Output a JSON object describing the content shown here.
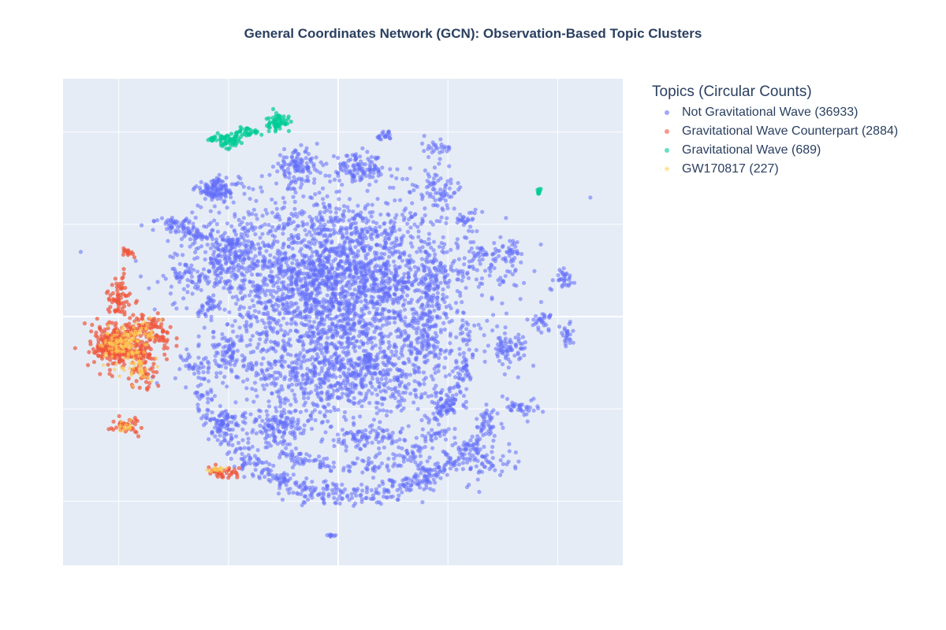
{
  "chart_data": {
    "type": "scatter",
    "title": "General Coordinates Network (GCN): Observation-Based Topic Clusters",
    "xlabel": "",
    "ylabel": "",
    "xlim": [
      -100,
      100
    ],
    "ylim": [
      -100,
      100
    ],
    "x_ticks": [
      -80,
      -40,
      0,
      40,
      80
    ],
    "y_ticks": [
      -80,
      -40,
      0,
      40,
      80
    ],
    "tick_labels_shown": false,
    "grid": true,
    "legend_title": "Topics (Circular Counts)",
    "legend_position": "right",
    "series": [
      {
        "name": "Not Gravitational Wave (36933)",
        "color": "#636efa",
        "marker": "circle",
        "clusters": [
          {
            "x": -5,
            "y": 20,
            "sx": 22,
            "sy": 17,
            "n": 1400
          },
          {
            "x": 5,
            "y": 8,
            "sx": 24,
            "sy": 20,
            "n": 1100
          },
          {
            "x": -40,
            "y": 28,
            "sx": 8,
            "sy": 6,
            "n": 180
          },
          {
            "x": -44,
            "y": 55,
            "sx": 4,
            "sy": 2.5,
            "n": 120
          },
          {
            "x": -15,
            "y": 65,
            "sx": 4,
            "sy": 3.5,
            "n": 110
          },
          {
            "x": 7,
            "y": 64,
            "sx": 5,
            "sy": 3,
            "n": 110
          },
          {
            "x": 36,
            "y": 73,
            "sx": 3,
            "sy": 1.8,
            "n": 25
          },
          {
            "x": 17,
            "y": 78,
            "sx": 1.5,
            "sy": 1.2,
            "n": 20
          },
          {
            "x": 36,
            "y": 55,
            "sx": 5,
            "sy": 4,
            "n": 70
          },
          {
            "x": 34,
            "y": 14,
            "sx": 4,
            "sy": 7,
            "n": 100
          },
          {
            "x": 55,
            "y": 25,
            "sx": 5,
            "sy": 4,
            "n": 70
          },
          {
            "x": 62,
            "y": -14,
            "sx": 3.5,
            "sy": 3.5,
            "n": 70
          },
          {
            "x": 74,
            "y": -2,
            "sx": 2,
            "sy": 2,
            "n": 30
          },
          {
            "x": 82,
            "y": 17,
            "sx": 2,
            "sy": 2,
            "n": 30
          },
          {
            "x": 83,
            "y": -8,
            "sx": 1.5,
            "sy": 3,
            "n": 25
          },
          {
            "x": 67,
            "y": -39,
            "sx": 3,
            "sy": 2,
            "n": 35
          },
          {
            "x": 33,
            "y": -10,
            "sx": 3,
            "sy": 7,
            "n": 80
          },
          {
            "x": -52,
            "y": 35,
            "sx": 2.5,
            "sy": 2,
            "n": 35
          },
          {
            "x": -52,
            "y": -21,
            "sx": 2.5,
            "sy": 3.5,
            "n": 35
          },
          {
            "x": -40,
            "y": -17,
            "sx": 3,
            "sy": 5,
            "n": 70
          },
          {
            "x": -40,
            "y": -45,
            "sx": 3,
            "sy": 2,
            "n": 45
          },
          {
            "x": -20,
            "y": -47,
            "sx": 5,
            "sy": 3,
            "n": 90
          },
          {
            "x": 10,
            "y": -53,
            "sx": 7,
            "sy": 2.5,
            "n": 90
          },
          {
            "x": -10,
            "y": -25,
            "sx": 14,
            "sy": 10,
            "n": 400
          },
          {
            "x": 15,
            "y": -25,
            "sx": 12,
            "sy": 9,
            "n": 300
          },
          {
            "x": 52,
            "y": -62,
            "sx": 6,
            "sy": 5,
            "n": 70
          },
          {
            "x": 31,
            "y": -70,
            "sx": 2,
            "sy": 3,
            "n": 30
          },
          {
            "x": -60,
            "y": 40,
            "sx": 4,
            "sy": 2,
            "n": 45
          },
          {
            "x": -55,
            "y": 18,
            "sx": 2.5,
            "sy": 4,
            "n": 40
          },
          {
            "x": -47,
            "y": 5,
            "sx": 2,
            "sy": 2,
            "n": 25
          },
          {
            "x": 46,
            "y": 42,
            "sx": 2,
            "sy": 2,
            "n": 25
          },
          {
            "x": 64,
            "y": 29,
            "sx": 1.5,
            "sy": 2.5,
            "n": 20
          },
          {
            "x": 40,
            "y": -38,
            "sx": 4,
            "sy": 4,
            "n": 40
          },
          {
            "x": -2,
            "y": -95,
            "sx": 1,
            "sy": 0.5,
            "n": 8
          }
        ],
        "arcs": [
          {
            "cx": 5,
            "cy": -22,
            "rx": 55,
            "ry": 55,
            "a0": 190,
            "a1": 340,
            "n": 500,
            "w": 2.5
          },
          {
            "cx": 5,
            "cy": -40,
            "rx": 35,
            "ry": 25,
            "a0": 200,
            "a1": 340,
            "n": 180,
            "w": 2
          },
          {
            "cx": 32,
            "cy": -4,
            "rx": 15,
            "ry": 40,
            "a0": 270,
            "a1": 360,
            "n": 100,
            "w": 1.5
          }
        ]
      },
      {
        "name": "Gravitational Wave Counterpart (2884)",
        "color": "#ef553b",
        "marker": "circle",
        "clusters": [
          {
            "x": -78,
            "y": -12,
            "sx": 6,
            "sy": 5,
            "n": 300
          },
          {
            "x": -83,
            "y": -15,
            "sx": 3,
            "sy": 2.5,
            "n": 60
          },
          {
            "x": -72,
            "y": -22,
            "sx": 3,
            "sy": 5,
            "n": 60
          },
          {
            "x": -80,
            "y": 7,
            "sx": 2,
            "sy": 3,
            "n": 50
          },
          {
            "x": -69,
            "y": -4,
            "sx": 3,
            "sy": 3,
            "n": 50
          },
          {
            "x": -77,
            "y": -47,
            "sx": 2.5,
            "sy": 2,
            "n": 40
          },
          {
            "x": -77,
            "y": 28,
            "sx": 1,
            "sy": 0.8,
            "n": 15
          },
          {
            "x": -80,
            "y": 15,
            "sx": 1.5,
            "sy": 2,
            "n": 15
          },
          {
            "x": -64,
            "y": -10,
            "sx": 1.5,
            "sy": 2.5,
            "n": 20
          },
          {
            "x": -41,
            "y": -68,
            "sx": 3,
            "sy": 1.2,
            "n": 40
          }
        ]
      },
      {
        "name": "Gravitational Wave (689)",
        "color": "#00cc96",
        "marker": "circle",
        "clusters": [
          {
            "x": -40,
            "y": 76,
            "sx": 2.5,
            "sy": 1.5,
            "n": 60
          },
          {
            "x": -22,
            "y": 84,
            "sx": 2,
            "sy": 2,
            "n": 60
          },
          {
            "x": -33,
            "y": 80,
            "sx": 2.5,
            "sy": 1.5,
            "n": 35
          },
          {
            "x": -46,
            "y": 77,
            "sx": 1,
            "sy": 0.5,
            "n": 10
          },
          {
            "x": 73,
            "y": 54,
            "sx": 0.3,
            "sy": 0.7,
            "n": 10
          }
        ]
      },
      {
        "name": "GW170817 (227)",
        "color": "#fecb52",
        "marker": "star",
        "clusters": [
          {
            "x": -78,
            "y": -12,
            "sx": 4,
            "sy": 3.5,
            "n": 110
          },
          {
            "x": -74,
            "y": -22,
            "sx": 2.5,
            "sy": 3.5,
            "n": 40
          },
          {
            "x": -70,
            "y": -5,
            "sx": 2,
            "sy": 2,
            "n": 20
          },
          {
            "x": -77,
            "y": -47,
            "sx": 1.5,
            "sy": 1.5,
            "n": 15
          },
          {
            "x": -45,
            "y": -66,
            "sx": 1.5,
            "sy": 0.6,
            "n": 15
          }
        ]
      }
    ]
  }
}
